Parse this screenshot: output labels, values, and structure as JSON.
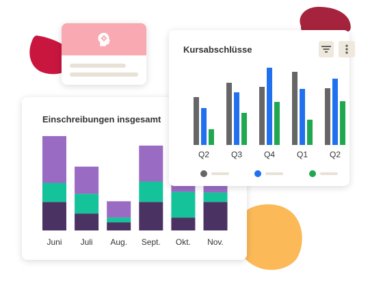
{
  "icons": {
    "head": "brain-gear-icon",
    "filter": "filter-icon",
    "more": "more-vertical-icon"
  },
  "enrollment": {
    "title": "Einschreibungen insgesamt"
  },
  "courses": {
    "title": "Kursabschlüsse"
  },
  "colors": {
    "purple": "#9a6bc3",
    "teal": "#15c39a",
    "dark_purple": "#4a3363",
    "gray": "#666666",
    "blue": "#2070f0",
    "green": "#20a850",
    "accent_red": "#c8163f",
    "accent_orange": "#fbb957"
  },
  "chart_data": [
    {
      "type": "bar",
      "stacked": true,
      "title": "Einschreibungen insgesamt",
      "categories": [
        "Juni",
        "Juli",
        "Aug.",
        "Sept.",
        "Okt.",
        "Nov."
      ],
      "series": [
        {
          "color": "#4a3363",
          "values": [
            42,
            25,
            12,
            42,
            19,
            42
          ]
        },
        {
          "color": "#15c39a",
          "values": [
            28,
            29,
            7,
            30,
            38,
            14
          ]
        },
        {
          "color": "#9a6bc3",
          "values": [
            69,
            40,
            24,
            53,
            13,
            14
          ]
        }
      ],
      "ylim": [
        0,
        139
      ],
      "grid": false
    },
    {
      "type": "bar",
      "title": "Kursabschlüsse",
      "categories": [
        "Q2",
        "Q3",
        "Q4",
        "Q1",
        "Q2"
      ],
      "series": [
        {
          "color": "#666666",
          "values": [
            70,
            91,
            85,
            107,
            83
          ]
        },
        {
          "color": "#2070f0",
          "values": [
            54,
            77,
            113,
            82,
            97
          ]
        },
        {
          "color": "#20a850",
          "values": [
            23,
            47,
            63,
            37,
            64
          ]
        }
      ],
      "ylim": [
        0,
        113
      ],
      "grid": false,
      "legend": "bottom"
    }
  ]
}
